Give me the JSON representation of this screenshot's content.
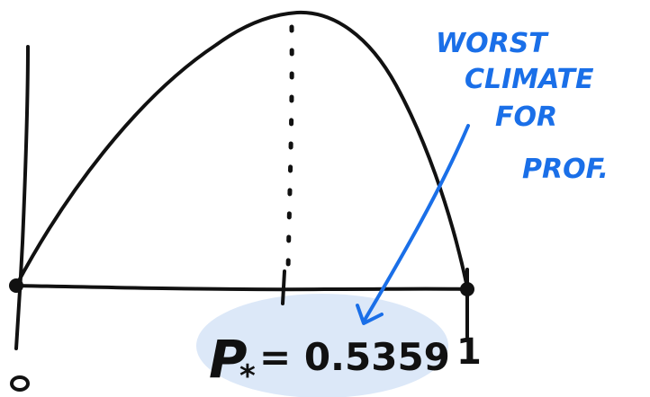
{
  "colors": {
    "ink": "#111111",
    "annotation": "#1a6fe8",
    "highlight": "#dce8f8"
  },
  "labels": {
    "origin": "0",
    "one": "1",
    "p_star": "P",
    "p_star_subscript": "*",
    "p_star_value": "= 0.5359"
  },
  "annotation": {
    "lines": [
      "WORST",
      "CLIMATE",
      "FOR",
      "PROF."
    ]
  },
  "icons": [
    "arrow-icon"
  ]
}
